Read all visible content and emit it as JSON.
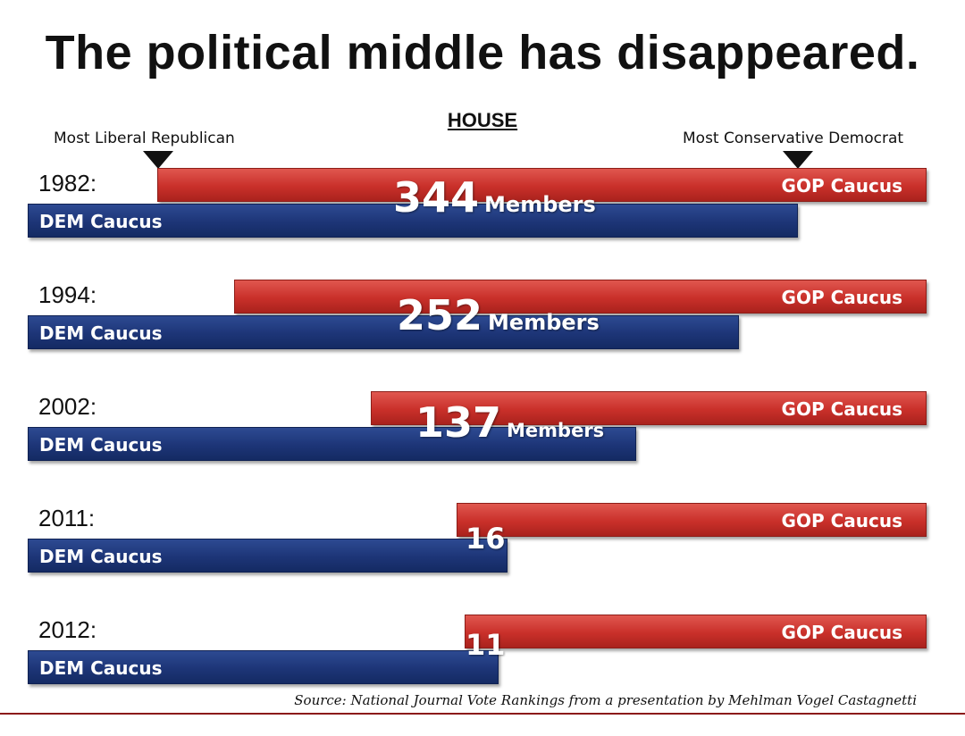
{
  "chart_data": {
    "type": "bar",
    "title": "The political middle has disappeared.",
    "subtitle": "HOUSE",
    "markers": {
      "left": "Most Liberal Republican",
      "right": "Most Conservative Democrat"
    },
    "series": [
      {
        "name": "GOP Caucus"
      },
      {
        "name": "DEM Caucus"
      }
    ],
    "categories": [
      "1982:",
      "1994:",
      "2002:",
      "2011:",
      "2012:"
    ],
    "overlap_members": [
      344,
      252,
      137,
      16,
      11
    ],
    "overlap_units": [
      "Members",
      "Members",
      "Members",
      "",
      ""
    ],
    "source": "Source: National Journal Vote Rankings from a presentation by Mehlman Vogel Castagnetti",
    "colors": {
      "gop": "#c9302a",
      "dem": "#1d3577"
    }
  }
}
